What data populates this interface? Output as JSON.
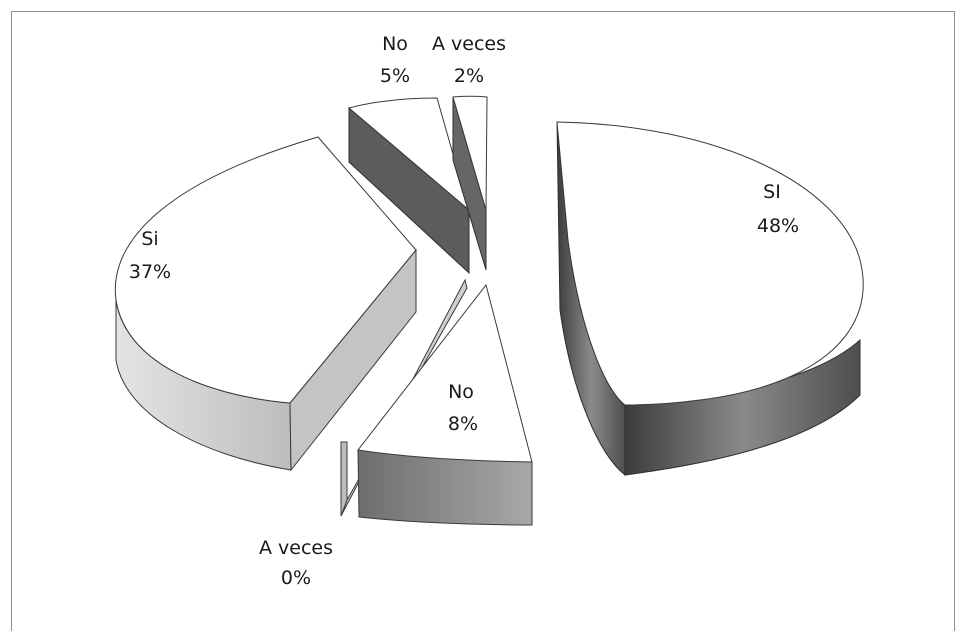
{
  "chart_data": {
    "type": "pie",
    "style": "3d-exploded",
    "legend": "none",
    "slices": [
      {
        "category": "SI",
        "value": 48,
        "label": "SI",
        "pct_label": "48%",
        "color": "#5a5a5a"
      },
      {
        "category": "No",
        "value": 8,
        "label": "No",
        "pct_label": "8%",
        "color": "#7a7a7a"
      },
      {
        "category": "A veces",
        "value": 0,
        "label": "A veces",
        "pct_label": "0%",
        "color": "#d6d6d6"
      },
      {
        "category": "Si",
        "value": 37,
        "label": "Si",
        "pct_label": "37%",
        "color": "#d0d0d0"
      },
      {
        "category": "No",
        "value": 5,
        "label": "No",
        "pct_label": "5%",
        "color": "#5a5a5a"
      },
      {
        "category": "A veces",
        "value": 2,
        "label": "A veces",
        "pct_label": "2%",
        "color": "#6a6a6a"
      }
    ]
  }
}
